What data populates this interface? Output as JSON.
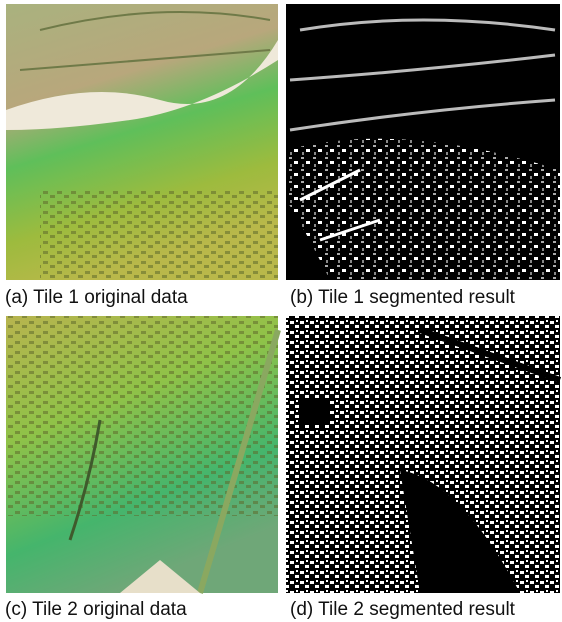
{
  "figure": {
    "panels": [
      {
        "caption": "(a) Tile 1 original data"
      },
      {
        "caption": "(b) Tile 1 segmented result"
      },
      {
        "caption": "(c) Tile 2 original data"
      },
      {
        "caption": "(d) Tile 2 segmented result"
      }
    ]
  }
}
